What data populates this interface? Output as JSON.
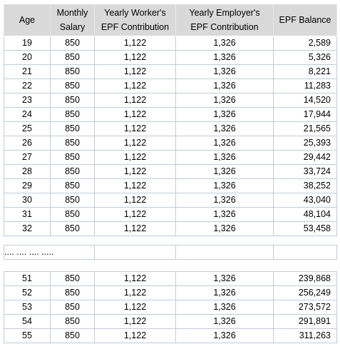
{
  "table": {
    "header": [
      [
        "Age"
      ],
      [
        "Monthly",
        "Salary"
      ],
      [
        "Yearly Worker's",
        "EPF Contribution"
      ],
      [
        "Yearly Employer's",
        "EPF Contribution"
      ],
      [
        "EPF Balance"
      ]
    ],
    "rows": [
      [
        "19",
        "850",
        "1,122",
        "1,326",
        "2,589"
      ],
      [
        "20",
        "850",
        "1,122",
        "1,326",
        "5,326"
      ],
      [
        "21",
        "850",
        "1,122",
        "1,326",
        "8,221"
      ],
      [
        "22",
        "850",
        "1,122",
        "1,326",
        "11,283"
      ],
      [
        "23",
        "850",
        "1,122",
        "1,326",
        "14,520"
      ],
      [
        "24",
        "850",
        "1,122",
        "1,326",
        "17,944"
      ],
      [
        "25",
        "850",
        "1,122",
        "1,326",
        "21,565"
      ],
      [
        "26",
        "850",
        "1,122",
        "1,326",
        "25,393"
      ],
      [
        "27",
        "850",
        "1,122",
        "1,326",
        "29,442"
      ],
      [
        "28",
        "850",
        "1,122",
        "1,326",
        "33,724"
      ],
      [
        "29",
        "850",
        "1,122",
        "1,326",
        "38,252"
      ],
      [
        "30",
        "850",
        "1,122",
        "1,326",
        "43,040"
      ],
      [
        "31",
        "850",
        "1,122",
        "1,326",
        "48,104"
      ],
      [
        "32",
        "850",
        "1,122",
        "1,326",
        "53,458"
      ]
    ],
    "ellipsis": ".... .... .... .....",
    "rows_end": [
      [
        "51",
        "850",
        "1,122",
        "1,326",
        "239,868"
      ],
      [
        "52",
        "850",
        "1,122",
        "1,326",
        "256,249"
      ],
      [
        "53",
        "850",
        "1,122",
        "1,326",
        "273,572"
      ],
      [
        "54",
        "850",
        "1,122",
        "1,326",
        "291,891"
      ],
      [
        "55",
        "850",
        "1,122",
        "1,326",
        "311,263"
      ]
    ]
  }
}
